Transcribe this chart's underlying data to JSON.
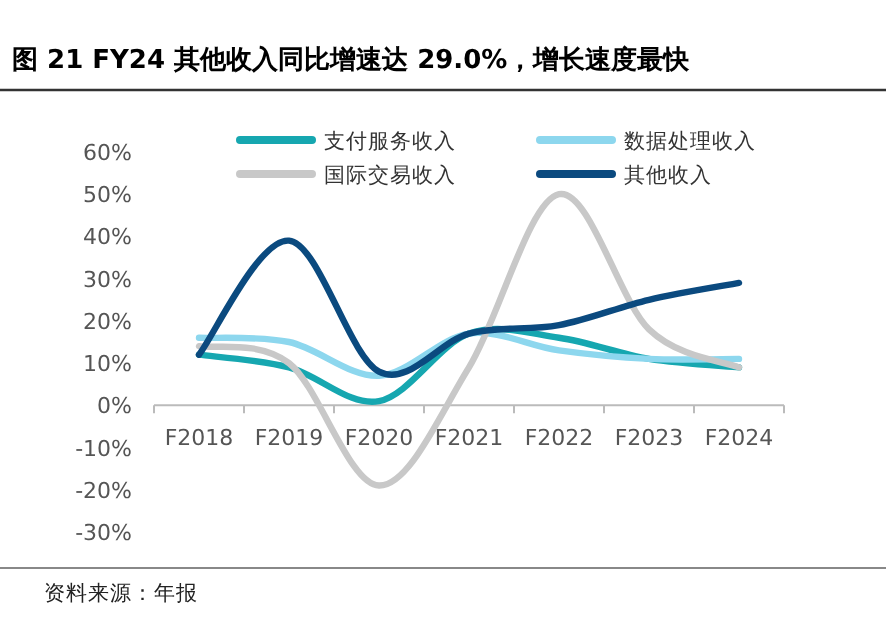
{
  "chart_data": {
    "type": "line",
    "title": "图 21 FY24 其他收入同比增速达 29.0%，增长速度最快",
    "categories": [
      "F2018",
      "F2019",
      "F2020",
      "F2021",
      "F2022",
      "F2023",
      "F2024"
    ],
    "series": [
      {
        "name": "支付服务收入",
        "color": "#16a7b0",
        "values": [
          12,
          9,
          1,
          17,
          16,
          11,
          9
        ]
      },
      {
        "name": "数据处理收入",
        "color": "#8dd7ee",
        "values": [
          16,
          15,
          7,
          17,
          13,
          11,
          11
        ]
      },
      {
        "name": "国际交易收入",
        "color": "#c8c8c8",
        "values": [
          14,
          10,
          -19,
          9,
          50,
          18,
          9
        ]
      },
      {
        "name": "其他收入",
        "color": "#0b4a7f",
        "values": [
          12,
          39,
          8,
          17,
          19,
          25,
          29
        ]
      }
    ],
    "ylim": [
      -30,
      60
    ],
    "yticks": [
      {
        "value": -30,
        "label": "-30%"
      },
      {
        "value": -20,
        "label": "-20%"
      },
      {
        "value": -10,
        "label": "-10%"
      },
      {
        "value": 0,
        "label": "0%"
      },
      {
        "value": 10,
        "label": "10%"
      },
      {
        "value": 20,
        "label": "20%"
      },
      {
        "value": 30,
        "label": "30%"
      },
      {
        "value": 40,
        "label": "40%"
      },
      {
        "value": 50,
        "label": "50%"
      },
      {
        "value": 60,
        "label": "60%"
      }
    ],
    "grid": false,
    "legend": "top",
    "marker": "none",
    "line_style": "solid",
    "annotations": [
      "资料来源：年报"
    ]
  }
}
